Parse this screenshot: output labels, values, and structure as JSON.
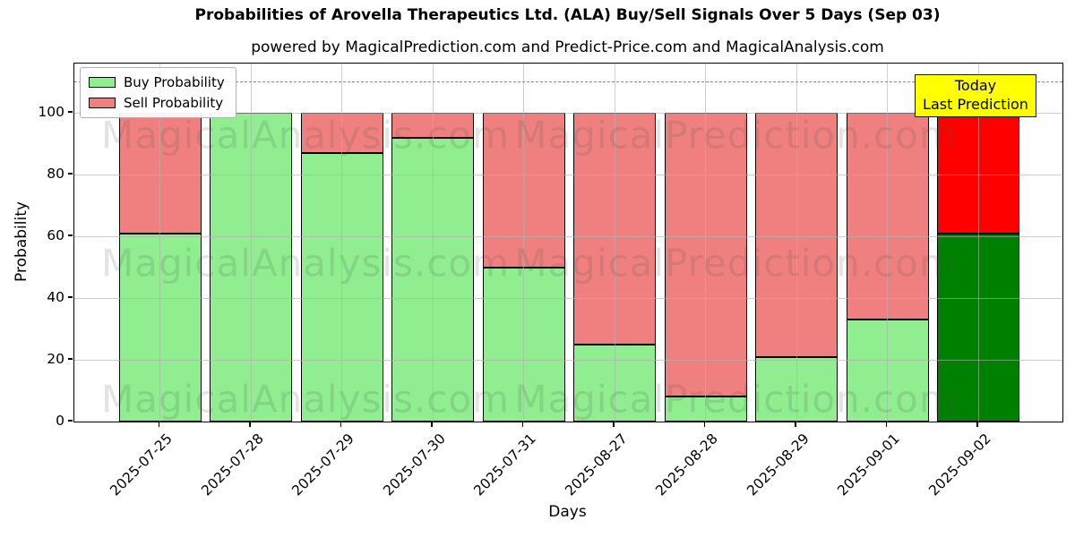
{
  "title": "Probabilities of Arovella Therapeutics Ltd. (ALA) Buy/Sell Signals Over 5 Days (Sep 03)",
  "subtitle": "powered by MagicalPrediction.com and Predict-Price.com and MagicalAnalysis.com",
  "annotation_box": {
    "line1": "Today",
    "line2": "Last Prediction",
    "bg_color": "#ffff00"
  },
  "watermarks": {
    "left_text": "MagicalAnalysis.com",
    "right_text": "MagicalPrediction.com"
  },
  "legend": {
    "items": [
      {
        "label": "Buy Probability",
        "color": "#90ee90"
      },
      {
        "label": "Sell Probability",
        "color": "#f08080"
      }
    ],
    "position": "upper left"
  },
  "chart_data": {
    "type": "bar",
    "stacked": true,
    "title": "Probabilities of Arovella Therapeutics Ltd. (ALA) Buy/Sell Signals Over 5 Days (Sep 03)",
    "xlabel": "Days",
    "ylabel": "Probability",
    "categories": [
      "2025-07-25",
      "2025-07-28",
      "2025-07-29",
      "2025-07-30",
      "2025-07-31",
      "2025-08-27",
      "2025-08-28",
      "2025-08-29",
      "2025-09-01",
      "2025-09-02"
    ],
    "series": [
      {
        "name": "Buy Probability",
        "values": [
          61,
          100,
          87,
          92,
          50,
          25,
          8,
          21,
          33,
          61
        ],
        "color": "#90ee90",
        "last_bar_color": "#008000"
      },
      {
        "name": "Sell Probability",
        "values": [
          39,
          0,
          13,
          8,
          50,
          75,
          92,
          79,
          67,
          39
        ],
        "color": "#f08080",
        "last_bar_color": "#ff0000"
      }
    ],
    "ylim": [
      0,
      116
    ],
    "yticks": [
      0,
      20,
      40,
      60,
      80,
      100
    ],
    "grid": true,
    "dashed_hline_y": 110,
    "highlighted_category": "2025-09-02"
  },
  "colors": {
    "buy": "#90ee90",
    "sell": "#f08080",
    "buy_today": "#008000",
    "sell_today": "#ff0000",
    "grid": "#b0b0b0",
    "dashed_line": "#8c8c8c",
    "annotation_bg": "#ffff00"
  }
}
